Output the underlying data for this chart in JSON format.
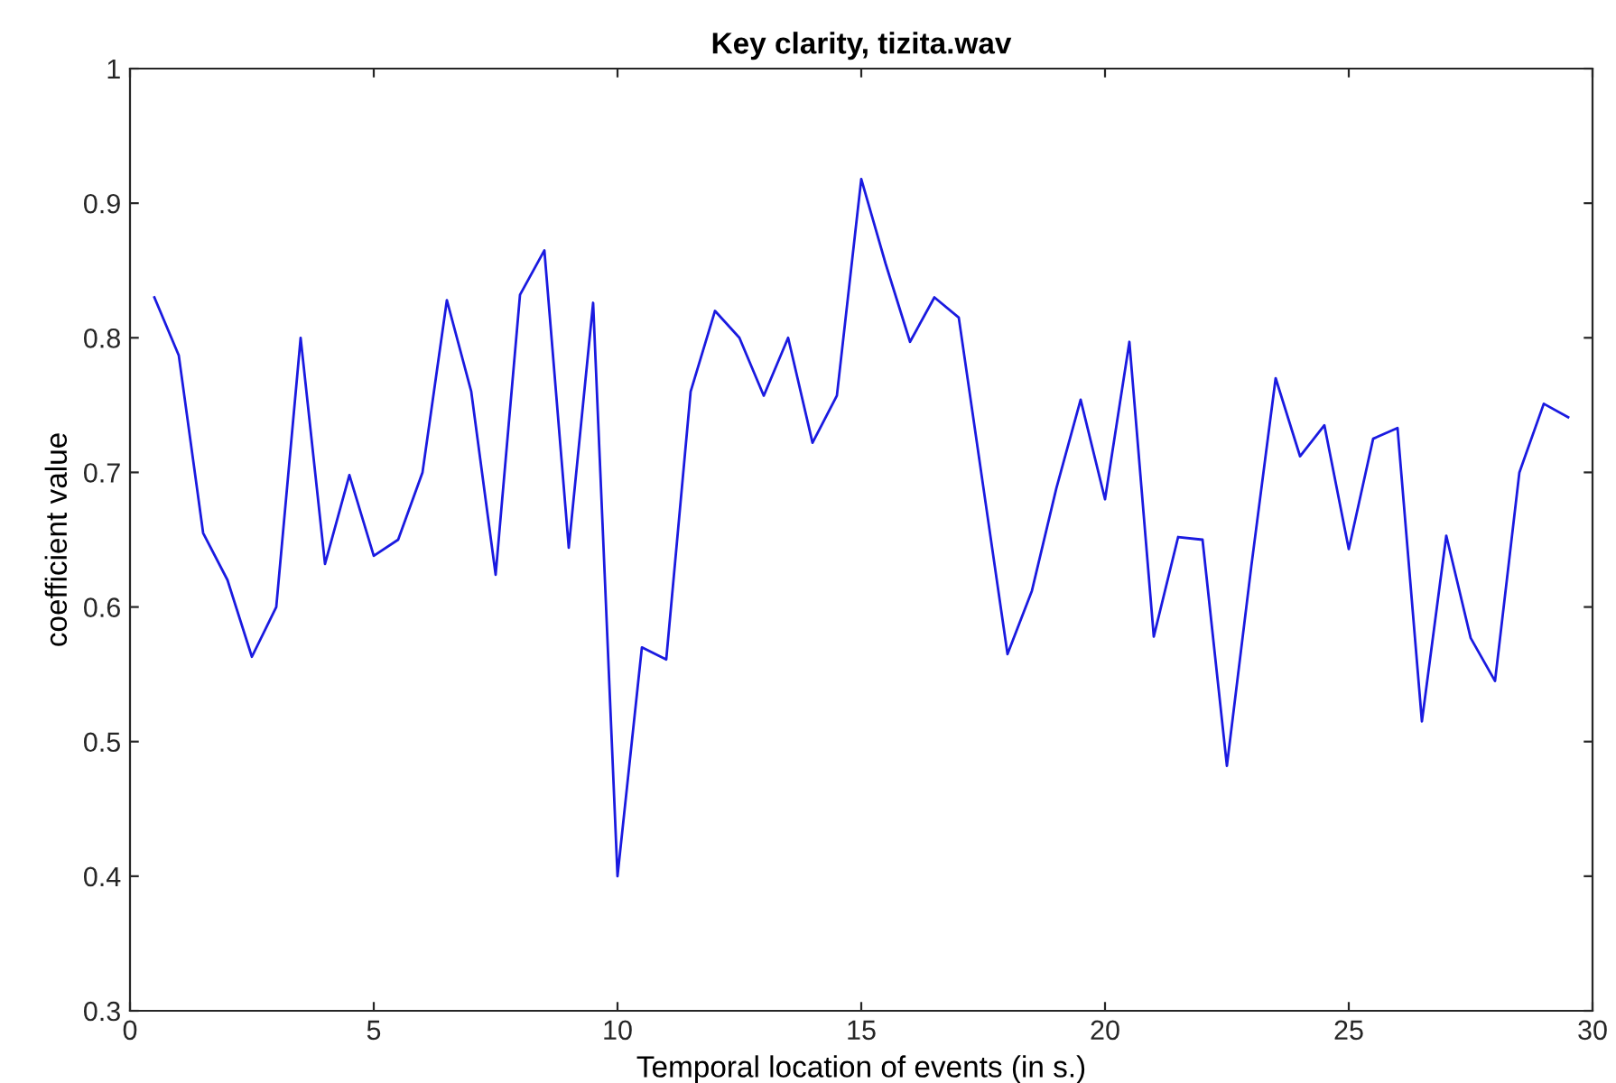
{
  "chart_data": {
    "type": "line",
    "title": "Key clarity, tizita.wav",
    "xlabel": "Temporal location of events (in s.)",
    "ylabel": "coefficient value",
    "x": [
      0.5,
      1,
      1.5,
      2,
      2.5,
      3,
      3.5,
      4,
      4.5,
      5,
      5.5,
      6,
      6.5,
      7,
      7.5,
      8,
      8.5,
      9,
      9.5,
      10,
      10.5,
      11,
      11.5,
      12,
      12.5,
      13,
      13.5,
      14,
      14.5,
      15,
      15.5,
      16,
      16.5,
      17,
      17.5,
      18,
      18.5,
      19,
      19.5,
      20,
      20.5,
      21,
      21.5,
      22,
      22.5,
      23,
      23.5,
      24,
      24.5,
      25,
      25.5,
      26,
      26.5,
      27,
      27.5,
      28,
      28.5,
      29,
      29.5
    ],
    "series": [
      {
        "color": "#1a1ae0",
        "values": [
          0.83,
          0.787,
          0.655,
          0.62,
          0.563,
          0.6,
          0.8,
          0.632,
          0.698,
          0.638,
          0.65,
          0.7,
          0.828,
          0.76,
          0.624,
          0.832,
          0.865,
          0.644,
          0.826,
          0.4,
          0.57,
          0.561,
          0.76,
          0.82,
          0.8,
          0.757,
          0.8,
          0.722,
          0.757,
          0.918,
          0.855,
          0.797,
          0.83,
          0.815,
          0.69,
          0.565,
          0.612,
          0.688,
          0.754,
          0.68,
          0.797,
          0.578,
          0.652,
          0.65,
          0.482,
          0.63,
          0.77,
          0.712,
          0.735,
          0.643,
          0.725,
          0.733,
          0.515,
          0.653,
          0.577,
          0.545,
          0.7,
          0.751,
          0.741
        ]
      }
    ],
    "xlim": [
      0,
      30
    ],
    "xticks": [
      0,
      5,
      10,
      15,
      20,
      25,
      30
    ],
    "ylim": [
      0.3,
      1
    ],
    "yticks": [
      0.3,
      0.4,
      0.5,
      0.6,
      0.7,
      0.8,
      0.9,
      {
        "value": 1,
        "label": "1"
      }
    ],
    "grid": false,
    "marker": "none",
    "line_style": "solid"
  }
}
